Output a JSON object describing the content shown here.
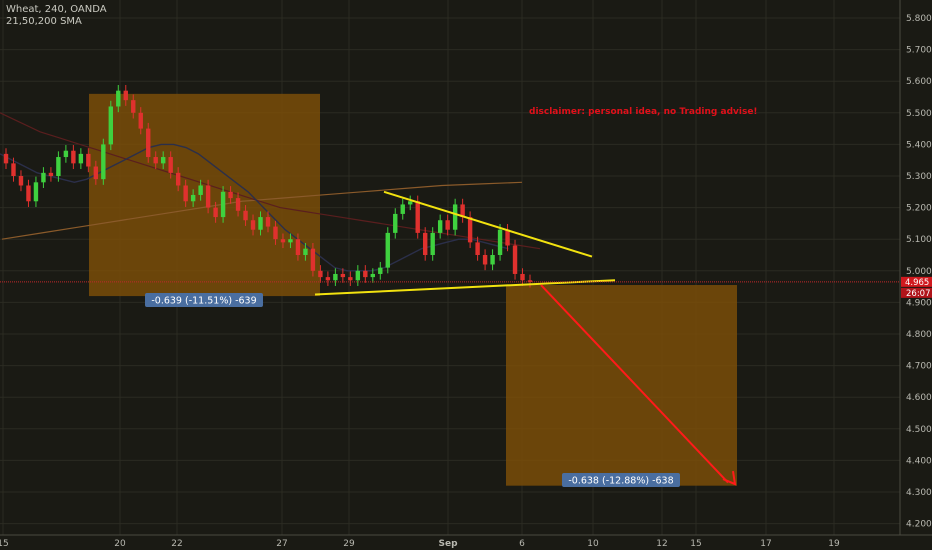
{
  "header": {
    "symbol_line": "Wheat, 240, OANDA",
    "indicator_line": "21,50,200 SMA"
  },
  "colors": {
    "background": "#1a1a14",
    "grid": "#2b2b22",
    "bull": "#3fd13f",
    "bear": "#e0312e",
    "box_fill": "#7a4d08",
    "trendline": "#f2e20f",
    "projection_arrow": "#ff1a1a",
    "sma21": "#2b2f4a",
    "sma50": "#5a1e1e",
    "sma200": "#8a5a2a",
    "price_tag": "#d0191e",
    "measure_label": "#4a6ea0",
    "disclaimer": "#e0101a"
  },
  "annotations": {
    "disclaimer": "disclaimer: personal idea, no Trading advise!",
    "measure_1": "-0.639 (-11.51%) -639",
    "measure_2": "-0.638 (-12.88%) -638"
  },
  "price_axis": {
    "current_price": "4.965",
    "countdown": "26:07",
    "ticks": [
      "5.800",
      "5.700",
      "5.600",
      "5.500",
      "5.400",
      "5.300",
      "5.200",
      "5.100",
      "5.000",
      "4.900",
      "4.800",
      "4.700",
      "4.600",
      "4.500",
      "4.400",
      "4.300",
      "4.200"
    ]
  },
  "time_axis": {
    "ticks": [
      "15",
      "20",
      "22",
      "27",
      "29",
      "Sep",
      "6",
      "10",
      "12",
      "15",
      "17",
      "19"
    ]
  },
  "chart_data": {
    "type": "candlestick",
    "symbol": "Wheat",
    "interval": "240",
    "source": "OANDA",
    "ylim": [
      4.14,
      5.85
    ],
    "y_ticks": [
      5.8,
      5.7,
      5.6,
      5.5,
      5.4,
      5.3,
      5.2,
      5.1,
      5.0,
      4.9,
      4.8,
      4.7,
      4.6,
      4.5,
      4.4,
      4.3,
      4.2
    ],
    "candle_close_approx": [
      5.34,
      5.3,
      5.27,
      5.22,
      5.28,
      5.31,
      5.3,
      5.36,
      5.38,
      5.34,
      5.37,
      5.33,
      5.29,
      5.4,
      5.52,
      5.57,
      5.54,
      5.5,
      5.45,
      5.36,
      5.34,
      5.36,
      5.31,
      5.27,
      5.22,
      5.24,
      5.27,
      5.2,
      5.17,
      5.25,
      5.23,
      5.19,
      5.16,
      5.13,
      5.17,
      5.14,
      5.1,
      5.09,
      5.1,
      5.05,
      5.07,
      5.0,
      4.98,
      4.97,
      4.99,
      4.98,
      4.97,
      5.0,
      4.98,
      4.99,
      5.01,
      5.12,
      5.18,
      5.21,
      5.22,
      5.12,
      5.05,
      5.12,
      5.16,
      5.13,
      5.21,
      5.17,
      5.09,
      5.05,
      5.02,
      5.05,
      5.13,
      5.08,
      4.99,
      4.97,
      4.965
    ],
    "sma_21": [
      5.37,
      5.35,
      5.33,
      5.31,
      5.3,
      5.29,
      5.28,
      5.29,
      5.31,
      5.33,
      5.35,
      5.37,
      5.39,
      5.4,
      5.4,
      5.39,
      5.37,
      5.34,
      5.31,
      5.28,
      5.25,
      5.21,
      5.17,
      5.13,
      5.1,
      5.07,
      5.04,
      5.01,
      5.0,
      5.0,
      5.0,
      5.01,
      5.03,
      5.05,
      5.07,
      5.08,
      5.09,
      5.1,
      5.1,
      5.09,
      5.08,
      5.07
    ],
    "sma_50": [
      5.5,
      5.47,
      5.44,
      5.42,
      5.4,
      5.38,
      5.36,
      5.34,
      5.32,
      5.3,
      5.28,
      5.26,
      5.24,
      5.22,
      5.2,
      5.19,
      5.18,
      5.17,
      5.16,
      5.15,
      5.14,
      5.13,
      5.12,
      5.11,
      5.1,
      5.09,
      5.08,
      5.07
    ],
    "sma_200": [
      5.1,
      5.12,
      5.14,
      5.16,
      5.18,
      5.2,
      5.22,
      5.23,
      5.24,
      5.25,
      5.26,
      5.27,
      5.275,
      5.28
    ],
    "measure_boxes": [
      {
        "x_from": "19",
        "x_to": "27",
        "price_from": 5.56,
        "price_to": 4.92,
        "change": -0.639,
        "percent": -11.51,
        "ticks": -639
      },
      {
        "x_from": "Sep 5",
        "x_to": "Sep 14",
        "price_from": 4.96,
        "price_to": 4.32,
        "change": -0.638,
        "percent": -12.88,
        "ticks": -638
      }
    ],
    "trendlines": [
      {
        "name": "upper",
        "from": 5.25,
        "to": 5.05
      },
      {
        "name": "lower",
        "from": 4.93,
        "to": 4.97
      }
    ],
    "grid": true
  }
}
